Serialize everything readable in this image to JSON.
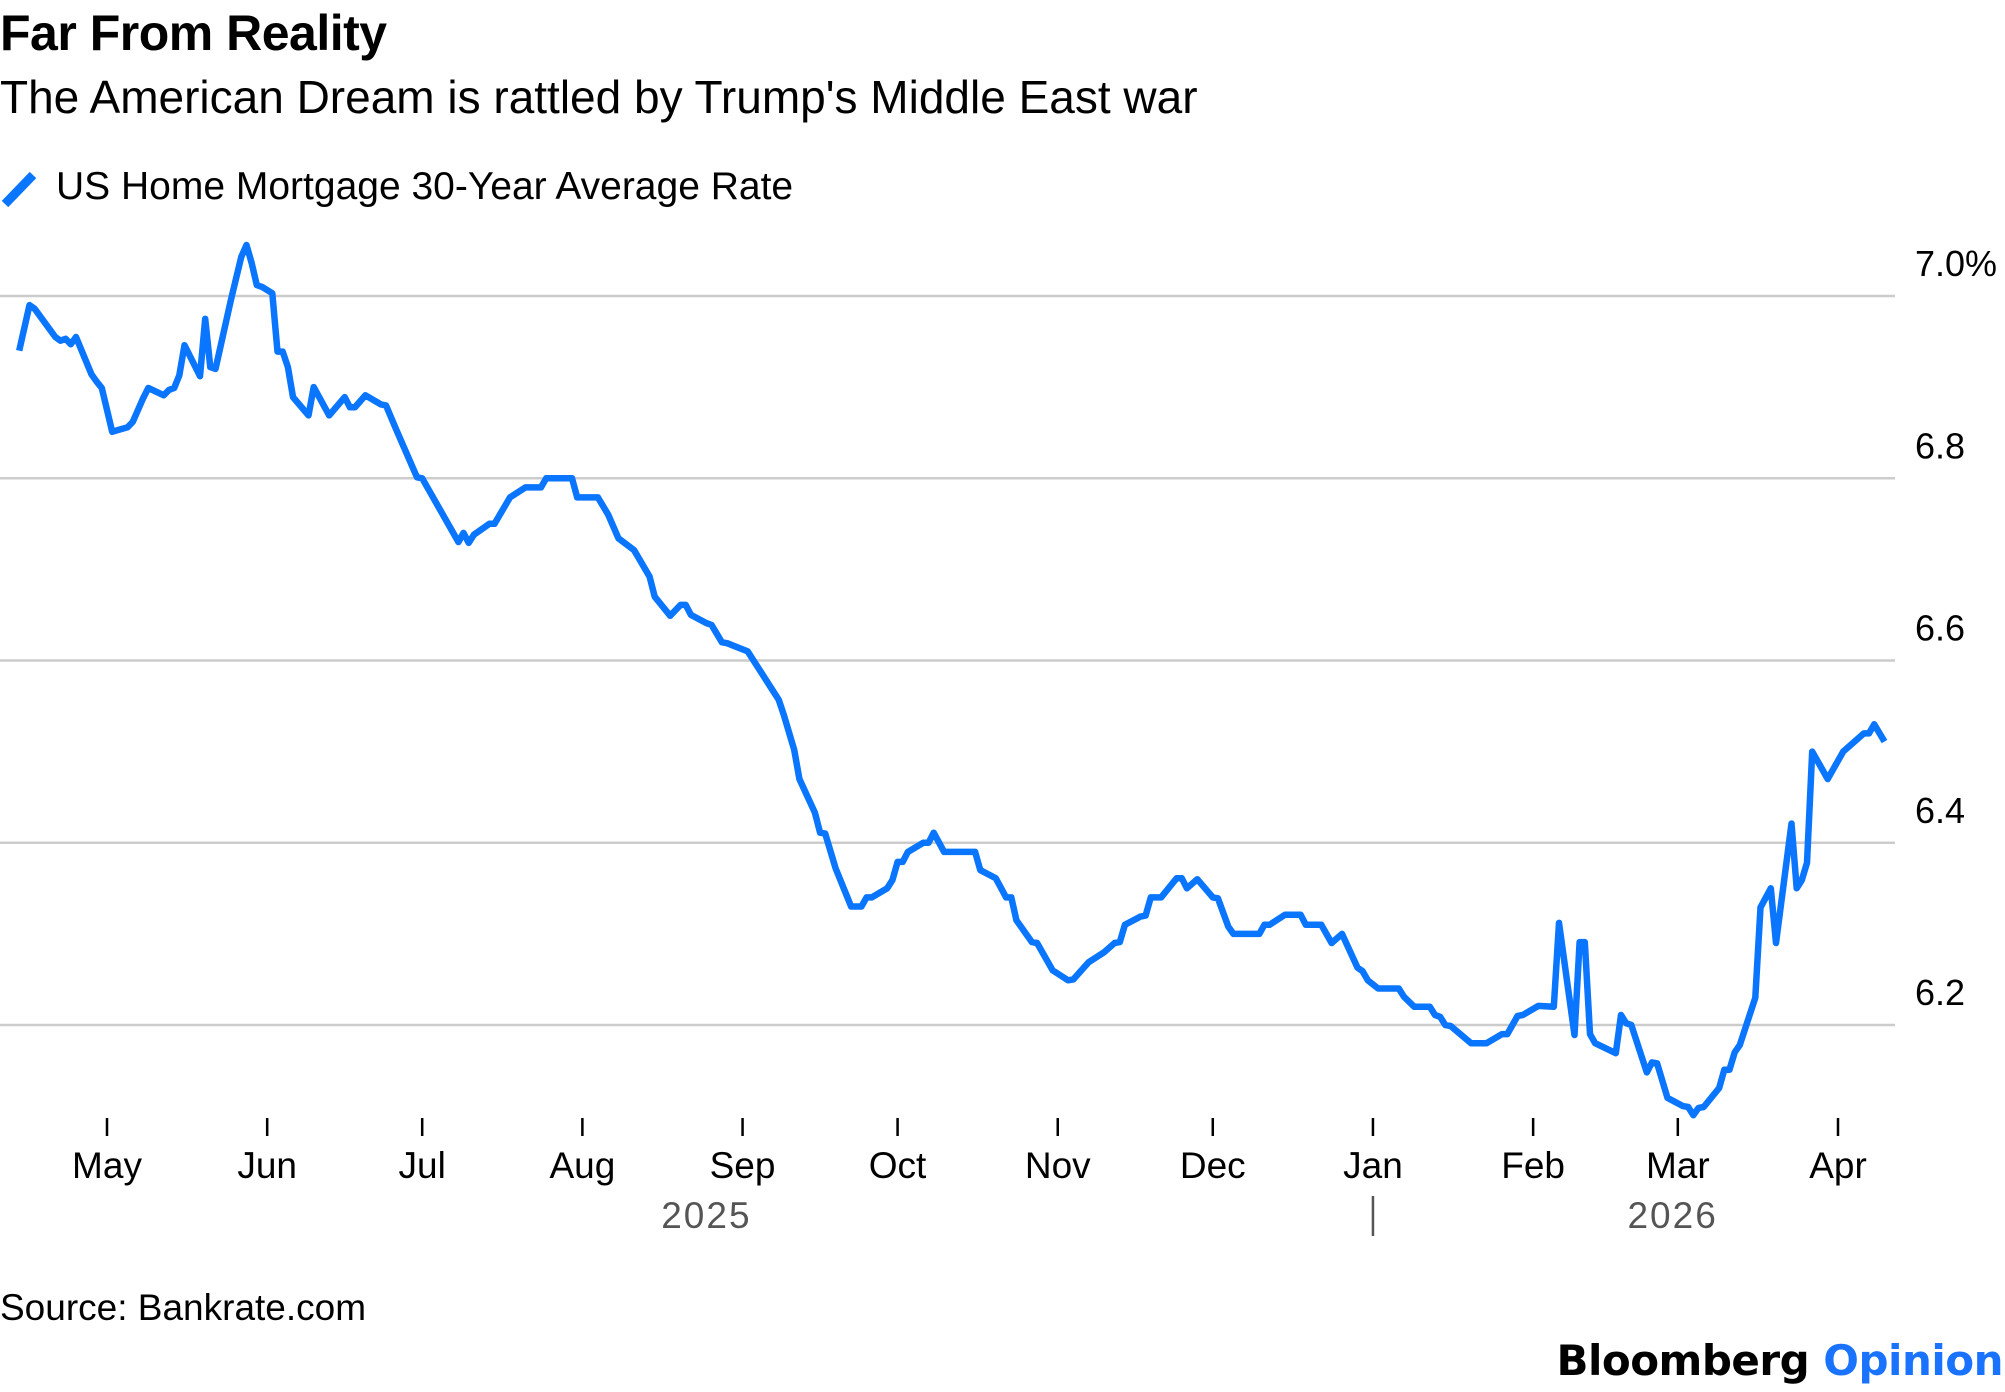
{
  "title": "Far From Reality",
  "subtitle": "The American Dream is rattled by Trump's Middle East war",
  "source": "Source: Bankrate.com",
  "brand": {
    "name": "Bloomberg",
    "section": "Opinion",
    "section_color": "#1a73ff"
  },
  "colors": {
    "line": "#0a75ff",
    "grid": "#cccccc",
    "axis_text": "#000000",
    "year_text": "#555555"
  },
  "chart_data": {
    "type": "line",
    "title": "Far From Reality",
    "subtitle": "The American Dream is rattled by Trump's Middle East war",
    "xlabel": "",
    "ylabel": "",
    "ylim": [
      6.1,
      7.05
    ],
    "y_ticks": [
      {
        "value": 7.0,
        "label": "7.0%"
      },
      {
        "value": 6.8,
        "label": "6.8"
      },
      {
        "value": 6.6,
        "label": "6.6"
      },
      {
        "value": 6.4,
        "label": "6.4"
      },
      {
        "value": 6.2,
        "label": "6.2"
      }
    ],
    "y_axis_position": "right",
    "grid": true,
    "legend_position": "top-left",
    "x_ticks": [
      {
        "date": "2025-05-01",
        "label": "May"
      },
      {
        "date": "2025-06-01",
        "label": "Jun"
      },
      {
        "date": "2025-07-01",
        "label": "Jul"
      },
      {
        "date": "2025-08-01",
        "label": "Aug"
      },
      {
        "date": "2025-09-01",
        "label": "Sep"
      },
      {
        "date": "2025-10-01",
        "label": "Oct"
      },
      {
        "date": "2025-11-01",
        "label": "Nov"
      },
      {
        "date": "2025-12-01",
        "label": "Dec"
      },
      {
        "date": "2026-01-01",
        "label": "Jan"
      },
      {
        "date": "2026-02-01",
        "label": "Feb"
      },
      {
        "date": "2026-03-01",
        "label": "Mar"
      },
      {
        "date": "2026-04-01",
        "label": "Apr"
      }
    ],
    "year_labels": [
      {
        "label": "2025",
        "center_date": "2025-08-25"
      },
      {
        "label": "2026",
        "center_date": "2026-02-28"
      }
    ],
    "year_divider_date": "2026-01-01",
    "series": [
      {
        "name": "US Home Mortgage 30-Year Average Rate",
        "color": "#0a75ff",
        "points": [
          [
            "2025-04-14",
            6.94
          ],
          [
            "2025-04-16",
            6.99
          ],
          [
            "2025-04-17",
            6.986
          ],
          [
            "2025-04-21",
            6.955
          ],
          [
            "2025-04-22",
            6.951
          ],
          [
            "2025-04-23",
            6.953
          ],
          [
            "2025-04-24",
            6.947
          ],
          [
            "2025-04-25",
            6.955
          ],
          [
            "2025-04-28",
            6.914
          ],
          [
            "2025-04-29",
            6.906
          ],
          [
            "2025-04-30",
            6.899
          ],
          [
            "2025-05-02",
            6.851
          ],
          [
            "2025-05-05",
            6.856
          ],
          [
            "2025-05-06",
            6.862
          ],
          [
            "2025-05-08",
            6.888
          ],
          [
            "2025-05-09",
            6.899
          ],
          [
            "2025-05-12",
            6.891
          ],
          [
            "2025-05-13",
            6.897
          ],
          [
            "2025-05-14",
            6.899
          ],
          [
            "2025-05-15",
            6.913
          ],
          [
            "2025-05-16",
            6.946
          ],
          [
            "2025-05-19",
            6.912
          ],
          [
            "2025-05-20",
            6.975
          ],
          [
            "2025-05-21",
            6.922
          ],
          [
            "2025-05-22",
            6.92
          ],
          [
            "2025-05-25",
            6.996
          ],
          [
            "2025-05-27",
            7.043
          ],
          [
            "2025-05-28",
            7.056
          ],
          [
            "2025-05-29",
            7.036
          ],
          [
            "2025-05-30",
            7.012
          ],
          [
            "2025-05-31",
            7.01
          ],
          [
            "2025-06-02",
            7.003
          ],
          [
            "2025-06-03",
            6.939
          ],
          [
            "2025-06-04",
            6.939
          ],
          [
            "2025-06-05",
            6.922
          ],
          [
            "2025-06-06",
            6.889
          ],
          [
            "2025-06-09",
            6.869
          ],
          [
            "2025-06-10",
            6.9
          ],
          [
            "2025-06-13",
            6.869
          ],
          [
            "2025-06-16",
            6.889
          ],
          [
            "2025-06-17",
            6.878
          ],
          [
            "2025-06-18",
            6.878
          ],
          [
            "2025-06-20",
            6.891
          ],
          [
            "2025-06-23",
            6.881
          ],
          [
            "2025-06-24",
            6.88
          ],
          [
            "2025-06-26",
            6.853
          ],
          [
            "2025-06-30",
            6.801
          ],
          [
            "2025-07-01",
            6.8
          ],
          [
            "2025-07-08",
            6.73
          ],
          [
            "2025-07-09",
            6.74
          ],
          [
            "2025-07-10",
            6.729
          ],
          [
            "2025-07-11",
            6.738
          ],
          [
            "2025-07-14",
            6.75
          ],
          [
            "2025-07-15",
            6.75
          ],
          [
            "2025-07-18",
            6.779
          ],
          [
            "2025-07-21",
            6.79
          ],
          [
            "2025-07-24",
            6.79
          ],
          [
            "2025-07-25",
            6.8
          ],
          [
            "2025-07-30",
            6.8
          ],
          [
            "2025-07-31",
            6.779
          ],
          [
            "2025-08-04",
            6.779
          ],
          [
            "2025-08-06",
            6.76
          ],
          [
            "2025-08-08",
            6.734
          ],
          [
            "2025-08-11",
            6.721
          ],
          [
            "2025-08-14",
            6.692
          ],
          [
            "2025-08-15",
            6.67
          ],
          [
            "2025-08-18",
            6.649
          ],
          [
            "2025-08-20",
            6.661
          ],
          [
            "2025-08-21",
            6.661
          ],
          [
            "2025-08-22",
            6.65
          ],
          [
            "2025-08-25",
            6.641
          ],
          [
            "2025-08-26",
            6.639
          ],
          [
            "2025-08-28",
            6.62
          ],
          [
            "2025-08-29",
            6.619
          ],
          [
            "2025-09-02",
            6.61
          ],
          [
            "2025-09-08",
            6.557
          ],
          [
            "2025-09-09",
            6.54
          ],
          [
            "2025-09-11",
            6.502
          ],
          [
            "2025-09-12",
            6.47
          ],
          [
            "2025-09-15",
            6.433
          ],
          [
            "2025-09-16",
            6.411
          ],
          [
            "2025-09-17",
            6.41
          ],
          [
            "2025-09-19",
            6.372
          ],
          [
            "2025-09-22",
            6.33
          ],
          [
            "2025-09-24",
            6.33
          ],
          [
            "2025-09-25",
            6.34
          ],
          [
            "2025-09-26",
            6.34
          ],
          [
            "2025-09-29",
            6.35
          ],
          [
            "2025-09-30",
            6.359
          ],
          [
            "2025-10-01",
            6.379
          ],
          [
            "2025-10-02",
            6.379
          ],
          [
            "2025-10-03",
            6.39
          ],
          [
            "2025-10-06",
            6.4
          ],
          [
            "2025-10-07",
            6.4
          ],
          [
            "2025-10-08",
            6.411
          ],
          [
            "2025-10-10",
            6.39
          ],
          [
            "2025-10-16",
            6.39
          ],
          [
            "2025-10-17",
            6.37
          ],
          [
            "2025-10-20",
            6.361
          ],
          [
            "2025-10-22",
            6.34
          ],
          [
            "2025-10-23",
            6.34
          ],
          [
            "2025-10-24",
            6.315
          ],
          [
            "2025-10-27",
            6.291
          ],
          [
            "2025-10-28",
            6.29
          ],
          [
            "2025-10-31",
            6.26
          ],
          [
            "2025-11-03",
            6.249
          ],
          [
            "2025-11-04",
            6.25
          ],
          [
            "2025-11-07",
            6.269
          ],
          [
            "2025-11-10",
            6.28
          ],
          [
            "2025-11-12",
            6.29
          ],
          [
            "2025-11-13",
            6.291
          ],
          [
            "2025-11-14",
            6.31
          ],
          [
            "2025-11-17",
            6.319
          ],
          [
            "2025-11-18",
            6.32
          ],
          [
            "2025-11-19",
            6.34
          ],
          [
            "2025-11-21",
            6.34
          ],
          [
            "2025-11-24",
            6.361
          ],
          [
            "2025-11-25",
            6.361
          ],
          [
            "2025-11-26",
            6.35
          ],
          [
            "2025-11-28",
            6.36
          ],
          [
            "2025-12-01",
            6.34
          ],
          [
            "2025-12-02",
            6.339
          ],
          [
            "2025-12-04",
            6.308
          ],
          [
            "2025-12-05",
            6.3
          ],
          [
            "2025-12-10",
            6.3
          ],
          [
            "2025-12-11",
            6.31
          ],
          [
            "2025-12-12",
            6.31
          ],
          [
            "2025-12-15",
            6.321
          ],
          [
            "2025-12-18",
            6.321
          ],
          [
            "2025-12-19",
            6.31
          ],
          [
            "2025-12-22",
            6.31
          ],
          [
            "2025-12-24",
            6.29
          ],
          [
            "2025-12-26",
            6.3
          ],
          [
            "2025-12-29",
            6.263
          ],
          [
            "2025-12-30",
            6.259
          ],
          [
            "2025-12-31",
            6.249
          ],
          [
            "2026-01-02",
            6.24
          ],
          [
            "2026-01-06",
            6.24
          ],
          [
            "2026-01-07",
            6.231
          ],
          [
            "2026-01-09",
            6.22
          ],
          [
            "2026-01-12",
            6.22
          ],
          [
            "2026-01-13",
            6.211
          ],
          [
            "2026-01-14",
            6.209
          ],
          [
            "2026-01-15",
            6.2
          ],
          [
            "2026-01-16",
            6.199
          ],
          [
            "2026-01-20",
            6.18
          ],
          [
            "2026-01-23",
            6.18
          ],
          [
            "2026-01-26",
            6.19
          ],
          [
            "2026-01-27",
            6.19
          ],
          [
            "2026-01-29",
            6.21
          ],
          [
            "2026-01-30",
            6.211
          ],
          [
            "2026-02-02",
            6.221
          ],
          [
            "2026-02-05",
            6.22
          ],
          [
            "2026-02-06",
            6.312
          ],
          [
            "2026-02-09",
            6.189
          ],
          [
            "2026-02-10",
            6.291
          ],
          [
            "2026-02-11",
            6.291
          ],
          [
            "2026-02-12",
            6.19
          ],
          [
            "2026-02-13",
            6.18
          ],
          [
            "2026-02-17",
            6.169
          ],
          [
            "2026-02-18",
            6.211
          ],
          [
            "2026-02-19",
            6.202
          ],
          [
            "2026-02-20",
            6.2
          ],
          [
            "2026-02-23",
            6.148
          ],
          [
            "2026-02-24",
            6.159
          ],
          [
            "2026-02-25",
            6.158
          ],
          [
            "2026-02-27",
            6.12
          ],
          [
            "2026-03-02",
            6.111
          ],
          [
            "2026-03-03",
            6.11
          ],
          [
            "2026-03-04",
            6.101
          ],
          [
            "2026-03-05",
            6.109
          ],
          [
            "2026-03-06",
            6.11
          ],
          [
            "2026-03-09",
            6.131
          ],
          [
            "2026-03-10",
            6.151
          ],
          [
            "2026-03-11",
            6.151
          ],
          [
            "2026-03-12",
            6.17
          ],
          [
            "2026-03-13",
            6.178
          ],
          [
            "2026-03-16",
            6.23
          ],
          [
            "2026-03-17",
            6.329
          ],
          [
            "2026-03-19",
            6.35
          ],
          [
            "2026-03-20",
            6.29
          ],
          [
            "2026-03-23",
            6.421
          ],
          [
            "2026-03-24",
            6.35
          ],
          [
            "2026-03-25",
            6.359
          ],
          [
            "2026-03-26",
            6.378
          ],
          [
            "2026-03-27",
            6.5
          ],
          [
            "2026-03-30",
            6.47
          ],
          [
            "2026-04-02",
            6.5
          ],
          [
            "2026-04-03",
            6.505
          ],
          [
            "2026-04-06",
            6.52
          ],
          [
            "2026-04-07",
            6.52
          ],
          [
            "2026-04-08",
            6.53
          ],
          [
            "2026-04-10",
            6.511
          ]
        ]
      }
    ]
  }
}
